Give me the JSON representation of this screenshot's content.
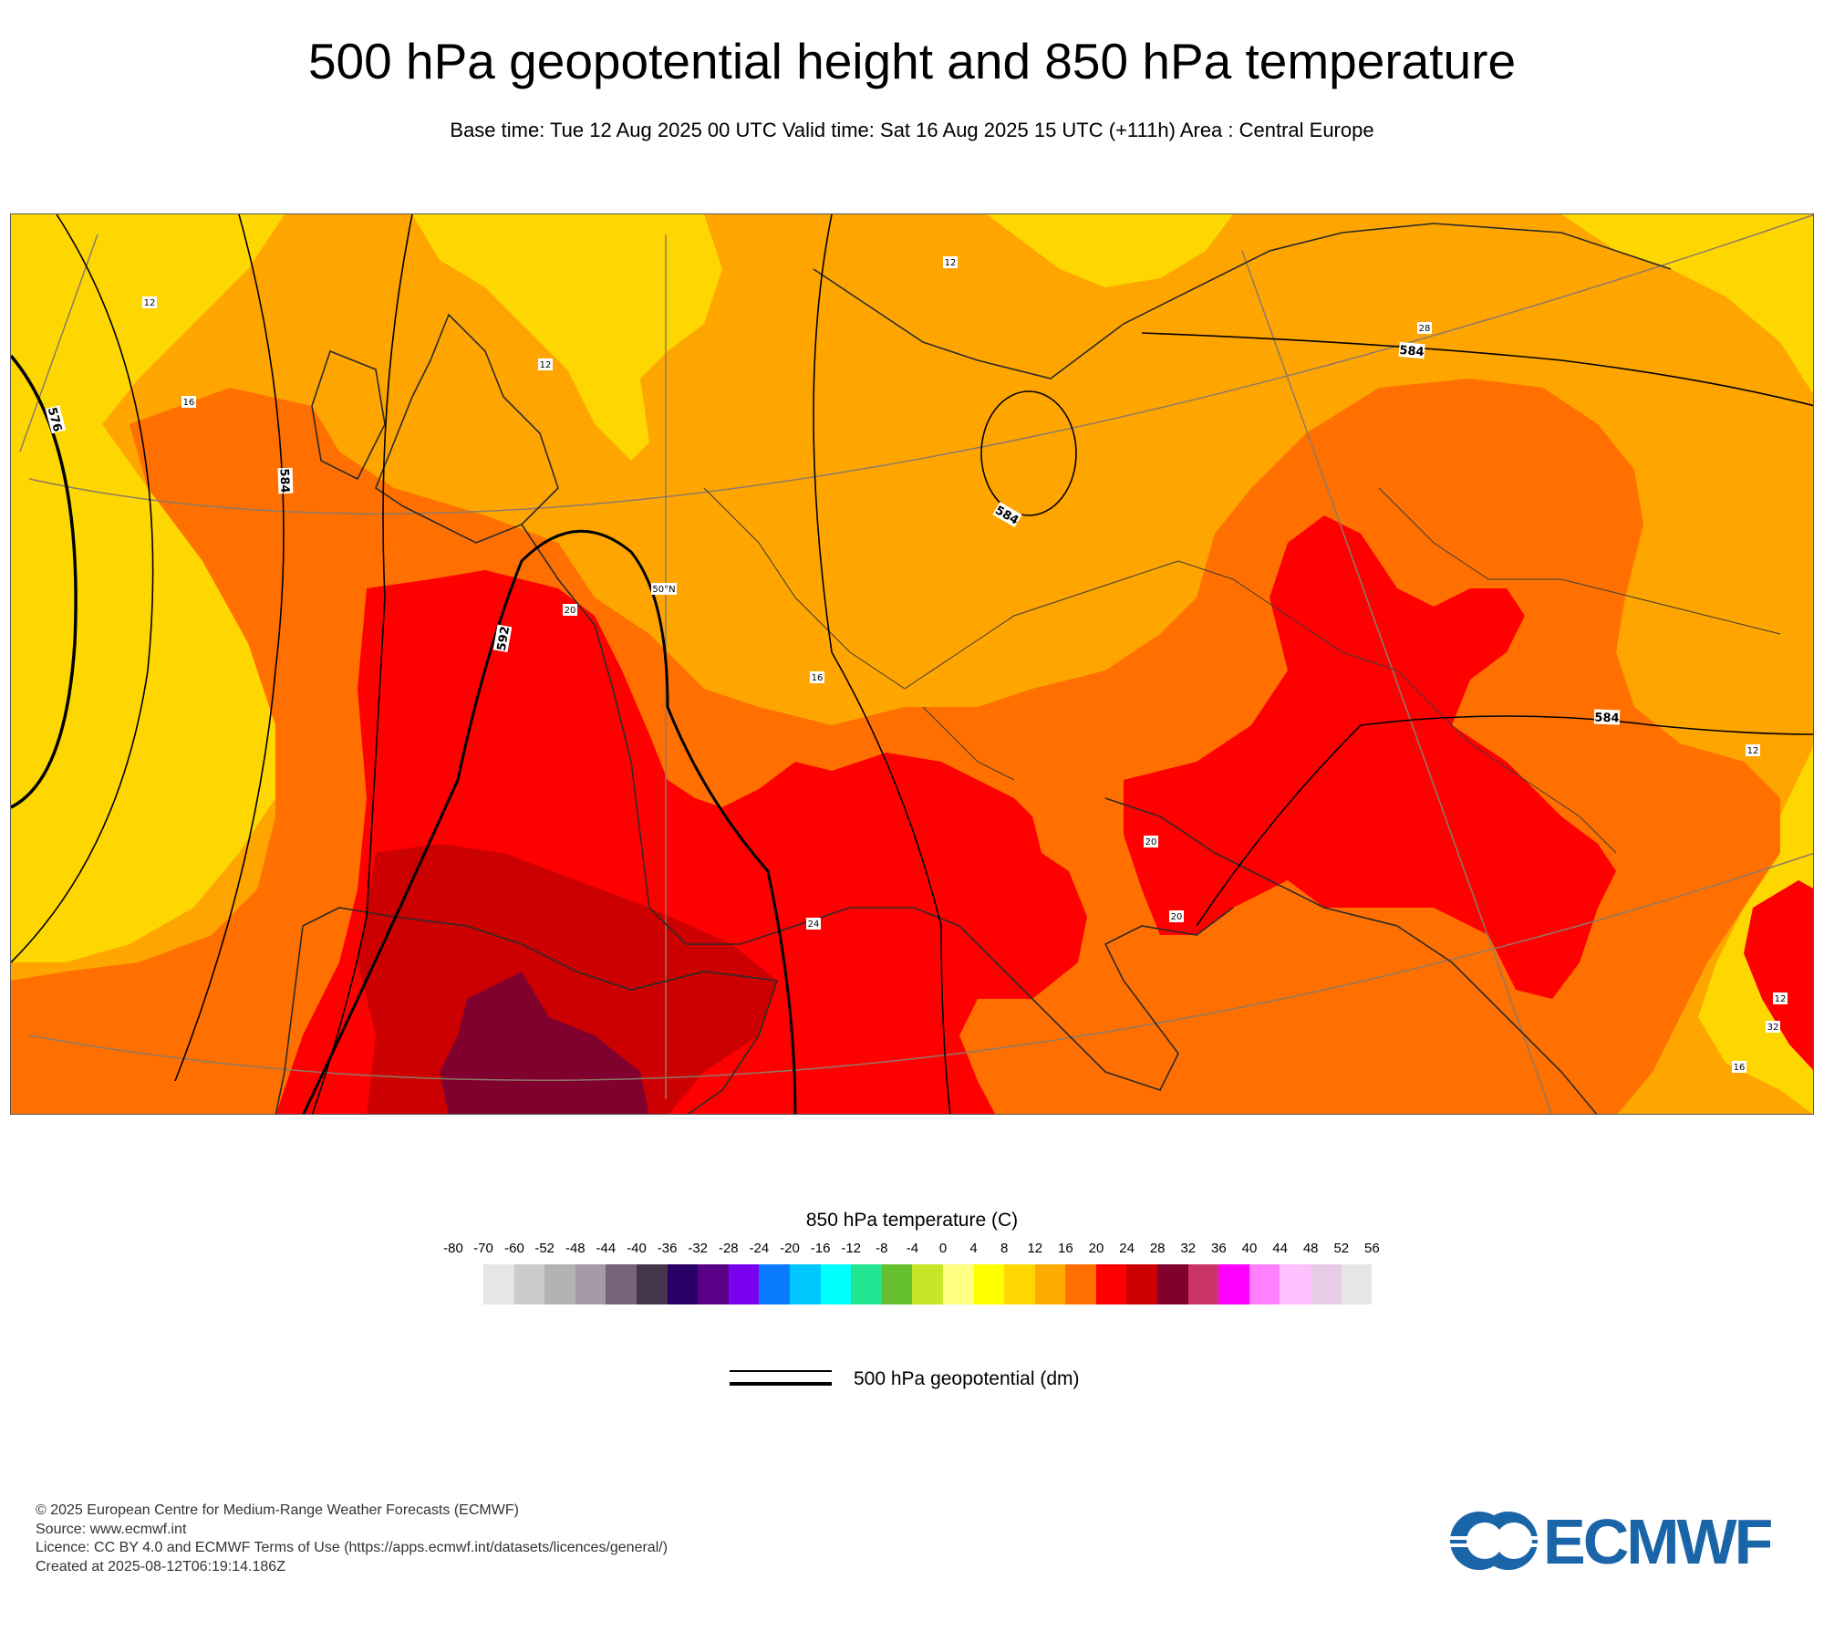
{
  "header": {
    "title": "500 hPa geopotential height and 850 hPa temperature",
    "subtitle": "Base time: Tue 12 Aug 2025 00 UTC Valid time: Sat 16 Aug 2025 15 UTC (+111h) Area : Central Europe"
  },
  "map": {
    "contour_labels": [
      "576",
      "584",
      "584",
      "584",
      "592",
      "584"
    ],
    "temperature_labels": [
      "12",
      "12",
      "16",
      "16",
      "20",
      "20",
      "20",
      "24",
      "28",
      "12",
      "12",
      "12",
      "16",
      "32"
    ],
    "graticule_label": "50°N"
  },
  "legend": {
    "title": "850 hPa temperature (C)",
    "ticks": [
      "-80",
      "-70",
      "-60",
      "-52",
      "-48",
      "-44",
      "-40",
      "-36",
      "-32",
      "-28",
      "-24",
      "-20",
      "-16",
      "-12",
      "-8",
      "-4",
      "0",
      "4",
      "8",
      "12",
      "16",
      "20",
      "24",
      "28",
      "32",
      "36",
      "40",
      "44",
      "48",
      "52",
      "56"
    ],
    "colors": [
      "#e6e6e6",
      "#cccccc",
      "#b3b3b3",
      "#a899a8",
      "#786278",
      "#44344c",
      "#2a0066",
      "#590088",
      "#7a00f0",
      "#0a7bff",
      "#00c8ff",
      "#00ffff",
      "#22e591",
      "#66bf2e",
      "#c6e62a",
      "#ffff80",
      "#ffff00",
      "#ffd700",
      "#ffaa00",
      "#ff7000",
      "#ff0000",
      "#cc0000",
      "#80002e",
      "#cc3366",
      "#ff00ff",
      "#ff80ff",
      "#ffc0ff",
      "#e6cce6",
      "#e6e6e6"
    ],
    "geopotential_label": "500 hPa geopotential (dm)"
  },
  "footer": {
    "line1": "© 2025 European Centre for Medium-Range Weather Forecasts (ECMWF)",
    "line2": "Source: www.ecmwf.int",
    "line3": "Licence: CC BY 4.0 and ECMWF Terms of Use (https://apps.ecmwf.int/datasets/licences/general/)",
    "line4": "Created at 2025-08-12T06:19:14.186Z"
  },
  "logo": {
    "text": "ECMWF",
    "color": "#1a64a8"
  }
}
